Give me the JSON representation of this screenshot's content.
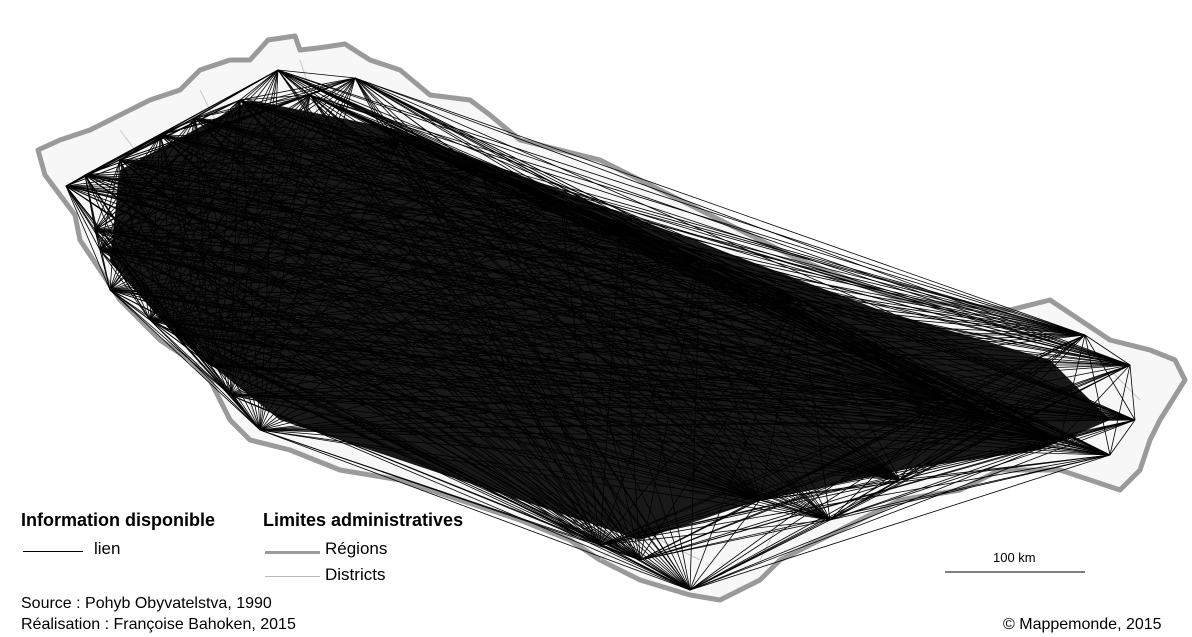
{
  "legend": {
    "info_title": "Information disponible",
    "lien_label": "lien",
    "admin_title": "Limites administratives",
    "regions_label": "Régions",
    "districts_label": "Districts"
  },
  "scale": {
    "label": "100 km"
  },
  "credits": {
    "source": "Source : Pohyb Obyvatelstva, 1990",
    "realisation": "Réalisation : Françoise Bahoken, 2015",
    "copyright": "© Mappemonde, 2015"
  },
  "colors": {
    "links": "#000000",
    "regions_border": "#9a9a9a",
    "districts_border": "#c8c8c8",
    "land_fill": "#f7f7f7",
    "background": "#ffffff"
  }
}
